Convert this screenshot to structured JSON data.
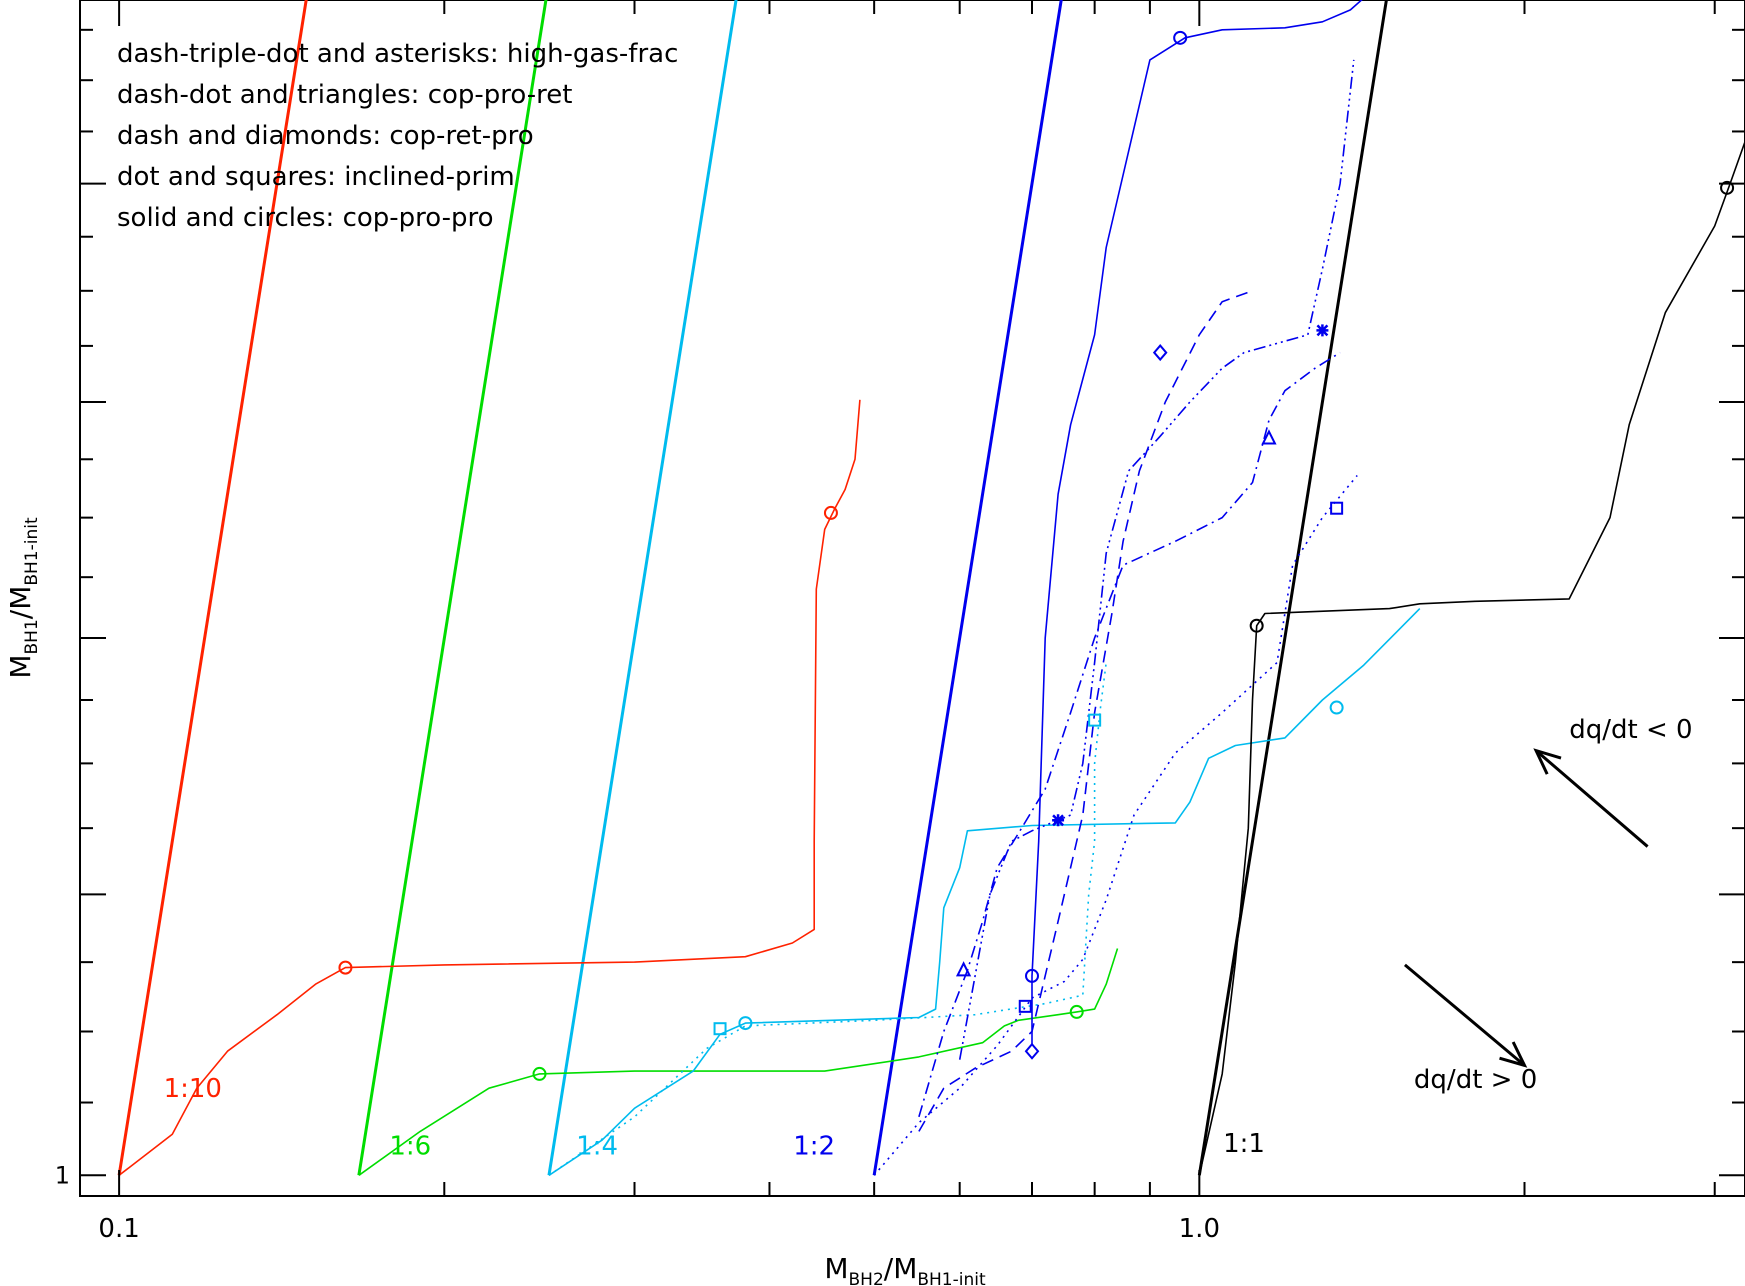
{
  "chart_data": {
    "type": "line",
    "x_scale": "log",
    "y_scale": "log",
    "xlim": [
      0.092,
      3.2
    ],
    "ylim": [
      0.993,
      1.49
    ],
    "xlabel": "M",
    "xlabel_sub": "BH2",
    "xlabel_mid": "/M",
    "xlabel_sub2": "BH1-init",
    "ylabel": "M",
    "ylabel_sub": "BH1",
    "ylabel_mid": "/M",
    "ylabel_sub2": "BH1-init",
    "x_tick_labels": [
      {
        "value": 0.1,
        "label": "0.1"
      },
      {
        "value": 1.0,
        "label": "1.0"
      }
    ],
    "x_major_ticks": [
      0.1,
      1.0
    ],
    "x_minor_ticks": [
      0.2,
      0.3,
      0.4,
      0.5,
      0.6,
      0.7,
      0.8,
      0.9,
      2.0,
      3.0
    ],
    "y_tick_labels": [
      {
        "value": 1.0,
        "label": "1"
      }
    ],
    "y_ticks": [
      1.0,
      1.1,
      1.2,
      1.3,
      1.4
    ],
    "y_minor_ticks": [
      1.025,
      1.05,
      1.075,
      1.125,
      1.15,
      1.175,
      1.225,
      1.25,
      1.275,
      1.325,
      1.35,
      1.375,
      1.425,
      1.45,
      1.475
    ],
    "legend_text": [
      "dash-triple-dot and asterisks: high-gas-frac",
      "dash-dot and triangles: cop-pro-ret",
      "dash and diamonds: cop-ret-pro",
      "dot and squares: inclined-prim",
      "solid and circles: cop-pro-pro"
    ],
    "legend_placement": "top-left",
    "reference_lines": [
      {
        "label": "1:10",
        "color": "#ff2200",
        "x0": 0.1,
        "label_x": 0.117,
        "label_y": 1.027
      },
      {
        "label": "1:6",
        "color": "#00dd00",
        "x0": 0.1667,
        "label_x": 0.186,
        "label_y": 1.007
      },
      {
        "label": "1:4",
        "color": "#00bbee",
        "x0": 0.25,
        "label_x": 0.277,
        "label_y": 1.007
      },
      {
        "label": "1:2",
        "color": "#0000ee",
        "x0": 0.5,
        "label_x": 0.44,
        "label_y": 1.007
      },
      {
        "label": "1:1",
        "color": "#000000",
        "x0": 1.0,
        "label_x": 1.1,
        "label_y": 1.008
      }
    ],
    "annotations": [
      {
        "text": "dq/dt < 0",
        "x": 2.2,
        "y": 1.16
      },
      {
        "text": "dq/dt > 0",
        "x": 1.58,
        "y": 1.03
      }
    ],
    "arrows": [
      {
        "x1": 2.6,
        "y1": 1.118,
        "x2": 2.05,
        "y2": 1.155
      },
      {
        "x1": 1.55,
        "y1": 1.074,
        "x2": 2.0,
        "y2": 1.038
      }
    ],
    "series": [
      {
        "color": "#ff2200",
        "style": "solid",
        "marker": "circle",
        "points": [
          [
            0.1,
            1.0
          ],
          [
            0.112,
            1.014
          ],
          [
            0.118,
            1.03
          ],
          [
            0.126,
            1.043
          ],
          [
            0.14,
            1.056
          ],
          [
            0.152,
            1.067
          ],
          [
            0.162,
            1.073
          ],
          [
            0.2,
            1.074
          ],
          [
            0.3,
            1.075
          ],
          [
            0.38,
            1.077
          ],
          [
            0.42,
            1.082
          ],
          [
            0.44,
            1.087
          ],
          [
            0.44,
            1.12
          ],
          [
            0.442,
            1.22
          ],
          [
            0.45,
            1.245
          ],
          [
            0.46,
            1.254
          ],
          [
            0.47,
            1.262
          ],
          [
            0.48,
            1.275
          ],
          [
            0.485,
            1.301
          ]
        ],
        "markers": [
          [
            0.162,
            1.073
          ],
          [
            0.456,
            1.252
          ]
        ]
      },
      {
        "color": "#00dd00",
        "style": "solid",
        "marker": "circle",
        "points": [
          [
            0.1667,
            1.0
          ],
          [
            0.19,
            1.015
          ],
          [
            0.22,
            1.03
          ],
          [
            0.245,
            1.035
          ],
          [
            0.3,
            1.036
          ],
          [
            0.45,
            1.036
          ],
          [
            0.55,
            1.041
          ],
          [
            0.63,
            1.046
          ],
          [
            0.66,
            1.052
          ],
          [
            0.68,
            1.054
          ],
          [
            0.74,
            1.056
          ],
          [
            0.77,
            1.057
          ],
          [
            0.8,
            1.058
          ],
          [
            0.82,
            1.067
          ],
          [
            0.84,
            1.08
          ]
        ],
        "markers": [
          [
            0.245,
            1.035
          ],
          [
            0.77,
            1.057
          ]
        ]
      },
      {
        "color": "#00bbee",
        "style": "solid",
        "marker": "circle",
        "points": [
          [
            0.25,
            1.0
          ],
          [
            0.28,
            1.012
          ],
          [
            0.3,
            1.023
          ],
          [
            0.34,
            1.036
          ],
          [
            0.36,
            1.049
          ],
          [
            0.38,
            1.053
          ],
          [
            0.55,
            1.055
          ],
          [
            0.57,
            1.058
          ],
          [
            0.575,
            1.075
          ],
          [
            0.58,
            1.095
          ],
          [
            0.6,
            1.11
          ],
          [
            0.61,
            1.124
          ],
          [
            0.7,
            1.126
          ],
          [
            0.95,
            1.127
          ],
          [
            0.98,
            1.135
          ],
          [
            1.02,
            1.152
          ],
          [
            1.08,
            1.157
          ],
          [
            1.2,
            1.16
          ],
          [
            1.3,
            1.175
          ],
          [
            1.42,
            1.189
          ],
          [
            1.6,
            1.212
          ]
        ],
        "markers": [
          [
            0.38,
            1.053
          ],
          [
            1.34,
            1.172
          ]
        ]
      },
      {
        "color": "#0000ee",
        "style": "solid",
        "marker": "circle",
        "points": [
          [
            0.7,
            1.045
          ],
          [
            0.7,
            1.07
          ],
          [
            0.71,
            1.12
          ],
          [
            0.72,
            1.2
          ],
          [
            0.74,
            1.26
          ],
          [
            0.76,
            1.29
          ],
          [
            0.8,
            1.33
          ],
          [
            0.82,
            1.37
          ],
          [
            0.9,
            1.46
          ],
          [
            0.97,
            1.471
          ],
          [
            1.05,
            1.475
          ],
          [
            1.2,
            1.476
          ],
          [
            1.3,
            1.479
          ],
          [
            1.38,
            1.485
          ],
          [
            1.42,
            1.491
          ]
        ],
        "markers": [
          [
            0.7,
            1.07
          ],
          [
            0.96,
            1.471
          ]
        ]
      },
      {
        "color": "#000000",
        "style": "solid",
        "marker": "circle",
        "points": [
          [
            1.0,
            1.0
          ],
          [
            1.05,
            1.035
          ],
          [
            1.08,
            1.075
          ],
          [
            1.11,
            1.125
          ],
          [
            1.12,
            1.175
          ],
          [
            1.13,
            1.205
          ],
          [
            1.15,
            1.21
          ],
          [
            1.5,
            1.212
          ],
          [
            1.6,
            1.214
          ],
          [
            1.8,
            1.215
          ],
          [
            2.2,
            1.216
          ],
          [
            2.4,
            1.25
          ],
          [
            2.5,
            1.29
          ],
          [
            2.7,
            1.34
          ],
          [
            3.0,
            1.38
          ],
          [
            3.1,
            1.4
          ],
          [
            3.2,
            1.42
          ]
        ],
        "markers": [
          [
            1.13,
            1.205
          ],
          [
            3.08,
            1.398
          ]
        ]
      },
      {
        "color": "#00bbee",
        "style": "dotted",
        "marker": "square",
        "points": [
          [
            0.25,
            1.0
          ],
          [
            0.3,
            1.02
          ],
          [
            0.35,
            1.044
          ],
          [
            0.38,
            1.052
          ],
          [
            0.5,
            1.054
          ],
          [
            0.62,
            1.056
          ],
          [
            0.72,
            1.06
          ],
          [
            0.78,
            1.063
          ],
          [
            0.79,
            1.1
          ],
          [
            0.8,
            1.12
          ],
          [
            0.8,
            1.15
          ],
          [
            0.81,
            1.172
          ],
          [
            0.82,
            1.19
          ]
        ],
        "markers": [
          [
            0.36,
            1.051
          ],
          [
            0.8,
            1.167
          ]
        ]
      },
      {
        "color": "#0000ee",
        "style": "dotted",
        "marker": "square",
        "points": [
          [
            0.5,
            1.0
          ],
          [
            0.55,
            1.018
          ],
          [
            0.6,
            1.03
          ],
          [
            0.65,
            1.045
          ],
          [
            0.7,
            1.062
          ],
          [
            0.75,
            1.068
          ],
          [
            0.78,
            1.076
          ],
          [
            0.82,
            1.098
          ],
          [
            0.87,
            1.13
          ],
          [
            0.95,
            1.154
          ],
          [
            1.05,
            1.17
          ],
          [
            1.18,
            1.19
          ],
          [
            1.22,
            1.23
          ],
          [
            1.3,
            1.25
          ],
          [
            1.4,
            1.268
          ]
        ],
        "markers": [
          [
            0.69,
            1.059
          ],
          [
            1.34,
            1.254
          ]
        ]
      },
      {
        "color": "#0000ee",
        "style": "dash-triple-dot",
        "marker": "asterisk",
        "points": [
          [
            0.6,
            1.04
          ],
          [
            0.62,
            1.07
          ],
          [
            0.64,
            1.1
          ],
          [
            0.67,
            1.12
          ],
          [
            0.7,
            1.124
          ],
          [
            0.76,
            1.13
          ],
          [
            0.78,
            1.15
          ],
          [
            0.8,
            1.19
          ],
          [
            0.82,
            1.235
          ],
          [
            0.86,
            1.27
          ],
          [
            0.92,
            1.285
          ],
          [
            0.98,
            1.3
          ],
          [
            1.05,
            1.315
          ],
          [
            1.1,
            1.322
          ],
          [
            1.26,
            1.33
          ],
          [
            1.3,
            1.36
          ],
          [
            1.35,
            1.4
          ],
          [
            1.39,
            1.46
          ]
        ],
        "markers": [
          [
            0.74,
            1.128
          ],
          [
            1.3,
            1.332
          ]
        ]
      },
      {
        "color": "#0000ee",
        "style": "dash-dot",
        "marker": "triangle",
        "points": [
          [
            0.55,
            1.02
          ],
          [
            0.58,
            1.05
          ],
          [
            0.61,
            1.072
          ],
          [
            0.63,
            1.09
          ],
          [
            0.65,
            1.11
          ],
          [
            0.68,
            1.123
          ],
          [
            0.72,
            1.14
          ],
          [
            0.76,
            1.17
          ],
          [
            0.8,
            1.2
          ],
          [
            0.85,
            1.23
          ],
          [
            0.95,
            1.24
          ],
          [
            1.05,
            1.25
          ],
          [
            1.12,
            1.265
          ],
          [
            1.16,
            1.292
          ],
          [
            1.2,
            1.305
          ],
          [
            1.28,
            1.315
          ],
          [
            1.35,
            1.322
          ]
        ],
        "markers": [
          [
            0.605,
            1.072
          ],
          [
            1.16,
            1.284
          ]
        ]
      },
      {
        "color": "#0000ee",
        "style": "dashed",
        "marker": "diamond",
        "points": [
          [
            0.55,
            1.015
          ],
          [
            0.58,
            1.03
          ],
          [
            0.62,
            1.037
          ],
          [
            0.67,
            1.043
          ],
          [
            0.7,
            1.05
          ],
          [
            0.74,
            1.09
          ],
          [
            0.78,
            1.13
          ],
          [
            0.8,
            1.17
          ],
          [
            0.83,
            1.21
          ],
          [
            0.85,
            1.24
          ],
          [
            0.88,
            1.27
          ],
          [
            0.93,
            1.3
          ],
          [
            1.0,
            1.33
          ],
          [
            1.05,
            1.345
          ],
          [
            1.12,
            1.35
          ]
        ],
        "markers": [
          [
            0.7,
            1.043
          ],
          [
            0.92,
            1.322
          ]
        ]
      }
    ]
  }
}
